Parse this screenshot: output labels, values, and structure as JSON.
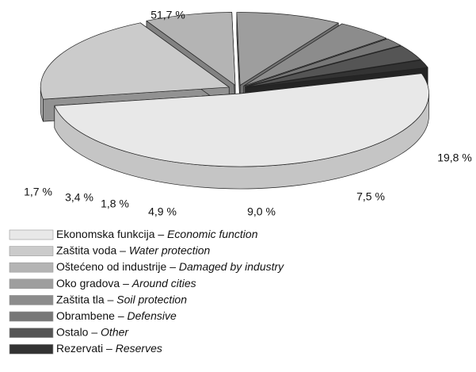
{
  "chart_data": {
    "type": "pie3d",
    "categories": [
      "Ekonomska funkcija",
      "Zaštita voda",
      "Oštećeno od industrije",
      "Oko gradova",
      "Zaštita tla",
      "Obrambene",
      "Ostalo",
      "Rezervati"
    ],
    "categories_en": [
      "Economic function",
      "Water protection",
      "Damaged by industry",
      "Around cities",
      "Soil protection",
      "Defensive",
      "Other",
      "Reserves"
    ],
    "legend_separator": "–",
    "values": [
      51.7,
      19.8,
      7.5,
      9.0,
      4.9,
      1.8,
      3.4,
      1.7
    ],
    "value_labels": [
      "51,7 %",
      "19,8 %",
      "7,5 %",
      "9,0 %",
      "4,9 %",
      "1,8 %",
      "3,4 %",
      "1,7 %"
    ],
    "colors": [
      "#e8e8e8",
      "#cbcbcb",
      "#b4b4b4",
      "#9e9e9e",
      "#8c8c8c",
      "#777777",
      "#555555",
      "#333333"
    ]
  }
}
